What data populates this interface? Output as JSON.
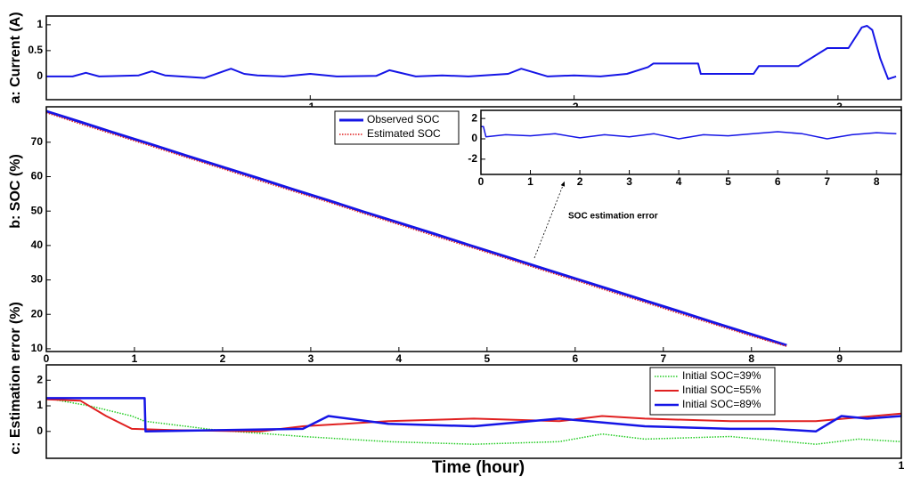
{
  "chart_data": [
    {
      "type": "line",
      "ylabel": "a: Current (A)",
      "xlim": [
        0,
        0.324
      ],
      "ylim": [
        -0.45,
        1.17
      ],
      "xticks": [
        {
          "value": 0.1,
          "label": ".1"
        },
        {
          "value": 0.2,
          "label": ".2"
        },
        {
          "value": 0.3,
          "label": ".3"
        }
      ],
      "yticks": [
        0,
        0.5,
        1
      ],
      "series": [
        {
          "color": "#1515e6",
          "linewidth": 2,
          "x": [
            0,
            0.01,
            0.015,
            0.02,
            0.035,
            0.04,
            0.045,
            0.06,
            0.07,
            0.075,
            0.08,
            0.09,
            0.1,
            0.11,
            0.125,
            0.13,
            0.14,
            0.15,
            0.16,
            0.175,
            0.18,
            0.19,
            0.2,
            0.21,
            0.22,
            0.228,
            0.23,
            0.247,
            0.248,
            0.268,
            0.27,
            0.285,
            0.296,
            0.304,
            0.309,
            0.311,
            0.313,
            0.316,
            0.319,
            0.322
          ],
          "values": [
            0,
            0,
            0.07,
            0,
            0.02,
            0.1,
            0.02,
            -0.03,
            0.15,
            0.05,
            0.02,
            0,
            0.05,
            0,
            0.01,
            0.12,
            0,
            0.02,
            0,
            0.05,
            0.15,
            0,
            0.02,
            0,
            0.05,
            0.18,
            0.25,
            0.25,
            0.05,
            0.05,
            0.2,
            0.2,
            0.55,
            0.55,
            0.95,
            0.98,
            0.9,
            0.35,
            -0.05,
            0
          ]
        }
      ]
    },
    {
      "type": "line",
      "ylabel": "b: SOC (%)",
      "annotation": "SOC estimation error",
      "xlim": [
        0,
        9.7
      ],
      "ylim": [
        9.2,
        80.3
      ],
      "xticks": [
        0,
        1,
        2,
        3,
        4,
        5,
        6,
        7,
        8,
        9
      ],
      "yticks": [
        10,
        20,
        30,
        40,
        50,
        60,
        70
      ],
      "series": [
        {
          "name": "Observed SOC",
          "color": "#1515e6",
          "linewidth": 3,
          "x": [
            0,
            0.4,
            0.8,
            1.2,
            1.6,
            2,
            2.4,
            2.8,
            3.2,
            3.6,
            4,
            4.4,
            4.8,
            5.2,
            5.6,
            6,
            6.4,
            6.8,
            7.2,
            7.6,
            8,
            8.4
          ],
          "values": [
            79,
            75.8,
            72.5,
            69.3,
            66,
            62.8,
            59.6,
            56.3,
            53.1,
            49.8,
            46.6,
            43.4,
            40.1,
            36.9,
            33.6,
            30.4,
            27.2,
            23.9,
            20.7,
            17.4,
            14.2,
            11
          ]
        },
        {
          "name": "Estimated SOC",
          "color": "#e02020",
          "linewidth": 1.5,
          "linestyle": "dotted",
          "x": [
            0,
            0.4,
            0.8,
            1.2,
            1.6,
            2,
            2.4,
            2.8,
            3.2,
            3.6,
            4,
            4.4,
            4.8,
            5.2,
            5.6,
            6,
            6.4,
            6.8,
            7.2,
            7.6,
            8,
            8.4
          ],
          "values": [
            78.6,
            75.2,
            72,
            68.8,
            65.5,
            62.3,
            59,
            55.8,
            52.6,
            49.3,
            46.1,
            42.8,
            39.6,
            36.4,
            33.1,
            29.9,
            26.6,
            23.4,
            20.1,
            16.9,
            13.7,
            10.7
          ]
        }
      ]
    },
    {
      "type": "line",
      "xlim": [
        0,
        8.5
      ],
      "ylim": [
        -3.5,
        2.8
      ],
      "xticks": [
        0,
        1,
        2,
        3,
        4,
        5,
        6,
        7,
        8
      ],
      "yticks": [
        -2,
        0,
        2
      ],
      "series": [
        {
          "color": "#1515e6",
          "linewidth": 1.5,
          "x": [
            0,
            0.05,
            0.1,
            0.5,
            1,
            1.5,
            2,
            2.5,
            3,
            3.5,
            4,
            4.5,
            5,
            5.5,
            6,
            6.5,
            7,
            7.5,
            8,
            8.4
          ],
          "values": [
            1.2,
            1.2,
            0.2,
            0.4,
            0.3,
            0.5,
            0.1,
            0.4,
            0.2,
            0.5,
            0,
            0.4,
            0.3,
            0.5,
            0.7,
            0.5,
            0,
            0.4,
            0.6,
            0.5
          ]
        }
      ]
    },
    {
      "type": "line",
      "ylabel": "c: Estimation error (%)",
      "xlabel": "Time (hour)",
      "xlim": [
        0,
        1
      ],
      "ylim": [
        -1.05,
        2.6
      ],
      "xticks": [
        1
      ],
      "yticks": [
        0,
        1,
        2
      ],
      "series": [
        {
          "name": "Initial SOC=39%",
          "color": "#22cc22",
          "linewidth": 1.5,
          "linestyle": "dotted",
          "x": [
            0,
            0.05,
            0.1,
            0.115,
            0.2,
            0.3,
            0.4,
            0.5,
            0.6,
            0.65,
            0.7,
            0.8,
            0.9,
            0.95,
            1
          ],
          "values": [
            1.3,
            1,
            0.6,
            0.4,
            0.05,
            -0.2,
            -0.4,
            -0.5,
            -0.4,
            -0.1,
            -0.3,
            -0.2,
            -0.5,
            -0.3,
            -0.4
          ]
        },
        {
          "name": "Initial SOC=55%",
          "color": "#e02020",
          "linewidth": 2,
          "x": [
            0,
            0.04,
            0.07,
            0.1,
            0.15,
            0.25,
            0.3,
            0.4,
            0.5,
            0.6,
            0.65,
            0.7,
            0.8,
            0.9,
            1
          ],
          "values": [
            1.25,
            1.2,
            0.6,
            0.1,
            0.05,
            0,
            0.2,
            0.4,
            0.5,
            0.4,
            0.6,
            0.5,
            0.4,
            0.4,
            0.7
          ]
        },
        {
          "name": "Initial SOC=89%",
          "color": "#1515e6",
          "linewidth": 2.5,
          "x": [
            0,
            0.115,
            0.116,
            0.2,
            0.3,
            0.33,
            0.4,
            0.5,
            0.6,
            0.7,
            0.8,
            0.85,
            0.9,
            0.93,
            0.96,
            1
          ],
          "values": [
            1.3,
            1.3,
            0,
            0.05,
            0.1,
            0.6,
            0.3,
            0.2,
            0.5,
            0.2,
            0.1,
            0.1,
            0,
            0.6,
            0.5,
            0.6
          ]
        }
      ]
    }
  ]
}
